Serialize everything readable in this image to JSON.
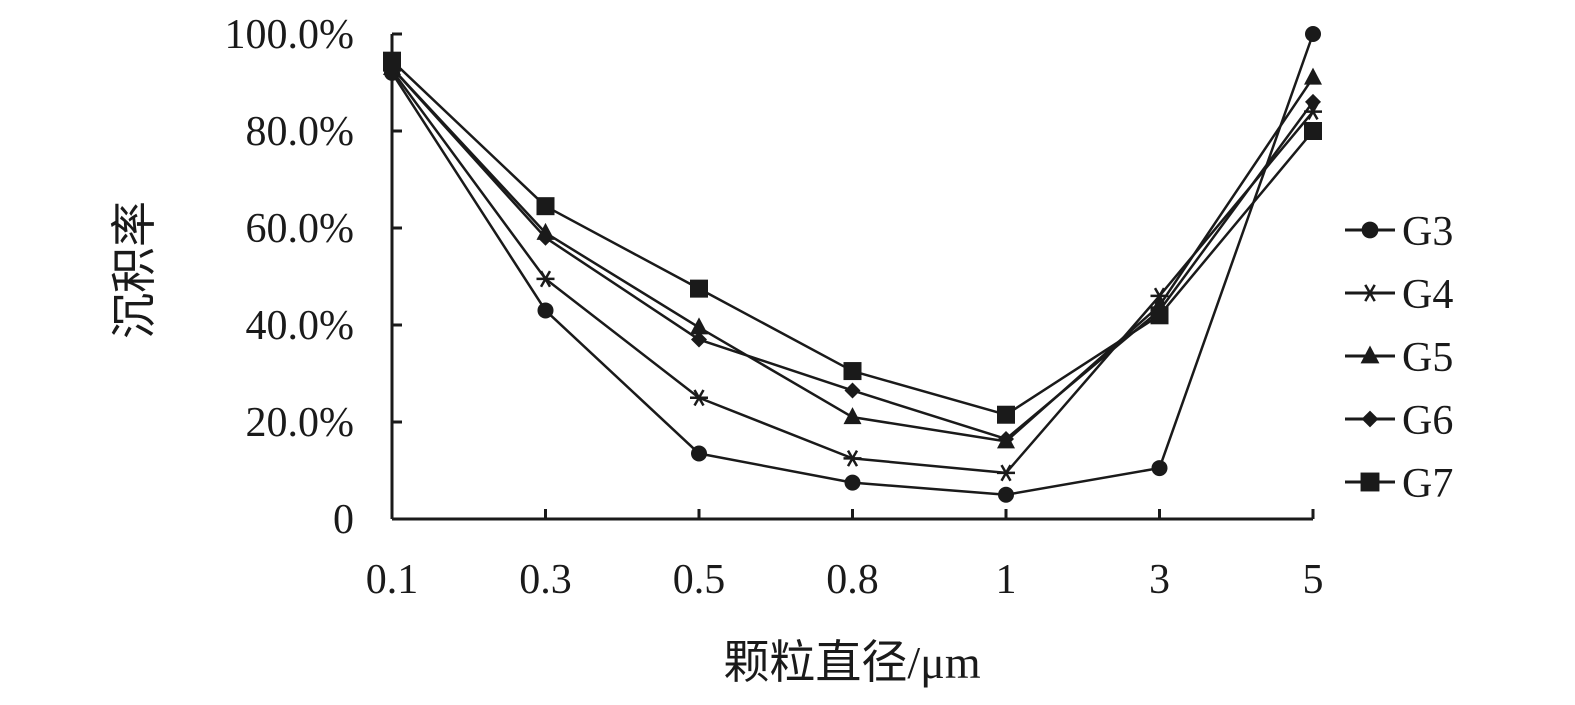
{
  "chart_data": {
    "type": "line",
    "title": "",
    "xlabel": "颗粒直径/μm",
    "ylabel": "沉积率",
    "categories": [
      "0.1",
      "0.3",
      "0.5",
      "0.8",
      "1",
      "3",
      "5"
    ],
    "y_tick_labels": [
      "0",
      "20.0%",
      "40.0%",
      "60.0%",
      "80.0%",
      "100.0%"
    ],
    "ylim": [
      0,
      100
    ],
    "y_unit": "%",
    "grid": false,
    "legend_position": "right",
    "series": [
      {
        "name": "G3",
        "marker": "circle",
        "values": [
          92,
          43,
          13.5,
          7.5,
          5,
          10.5,
          100
        ]
      },
      {
        "name": "G4",
        "marker": "asterisk",
        "values": [
          92.5,
          49.5,
          25,
          12.5,
          9.5,
          46,
          84
        ]
      },
      {
        "name": "G5",
        "marker": "triangle",
        "values": [
          93,
          59,
          39.5,
          21,
          16,
          44,
          91
        ]
      },
      {
        "name": "G6",
        "marker": "diamond",
        "values": [
          93,
          58,
          37,
          26.5,
          16.5,
          43,
          86
        ]
      },
      {
        "name": "G7",
        "marker": "square",
        "values": [
          94.5,
          64.5,
          47.5,
          30.5,
          21.5,
          42,
          80
        ]
      }
    ],
    "line_color": "#1a1a1a"
  }
}
